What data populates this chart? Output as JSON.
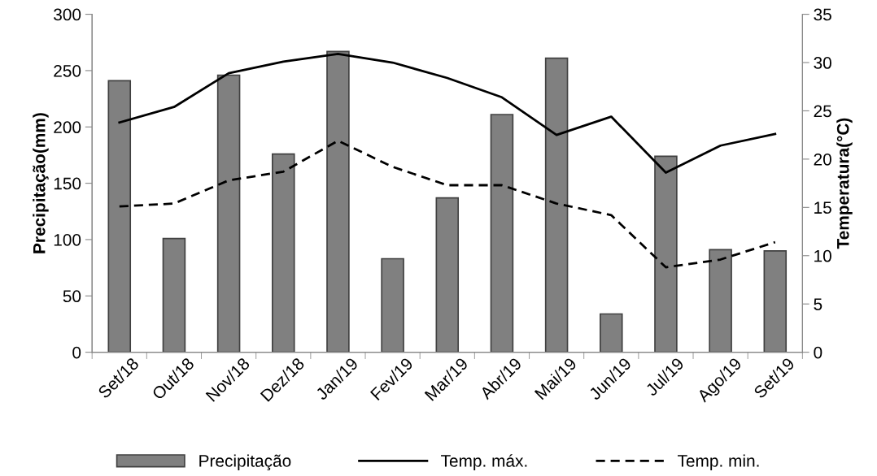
{
  "chart_data": {
    "type": "bar",
    "ylabel": "Precipitação(mm)",
    "y2label": "Temperatura(°C)",
    "categories": [
      "Set/18",
      "Out/18",
      "Nov/18",
      "Dez/18",
      "Jan/19",
      "Fev/19",
      "Mar/19",
      "Abr/19",
      "Mai/19",
      "Jun/19",
      "Jul/19",
      "Ago/19",
      "Set/19"
    ],
    "series": [
      {
        "name": "Precipitação",
        "color": "#808080",
        "values": [
          241,
          101,
          246,
          176,
          267,
          83,
          137,
          211,
          261,
          34,
          174,
          91,
          90
        ]
      },
      {
        "name": "Temp. máx.",
        "type": "line",
        "axis": "y2",
        "color": "#000000",
        "line_style": "solid",
        "values": [
          23.8,
          25.4,
          28.9,
          30.1,
          30.9,
          30.0,
          28.4,
          26.4,
          22.5,
          24.4,
          18.6,
          21.4,
          22.6
        ]
      },
      {
        "name": "Temp. min.",
        "type": "line",
        "axis": "y2",
        "color": "#000000",
        "line_style": "dashed",
        "values": [
          15.1,
          15.4,
          17.8,
          18.7,
          21.9,
          19.2,
          17.3,
          17.3,
          15.4,
          14.2,
          8.8,
          9.6,
          11.4
        ]
      }
    ],
    "ylim": [
      0,
      300
    ],
    "yticks": [
      0,
      50,
      100,
      150,
      200,
      250,
      300
    ],
    "y2lim": [
      0,
      35
    ],
    "y2ticks": [
      0,
      5,
      10,
      15,
      20,
      25,
      30,
      35
    ],
    "grid": false,
    "legend": "bottom"
  }
}
